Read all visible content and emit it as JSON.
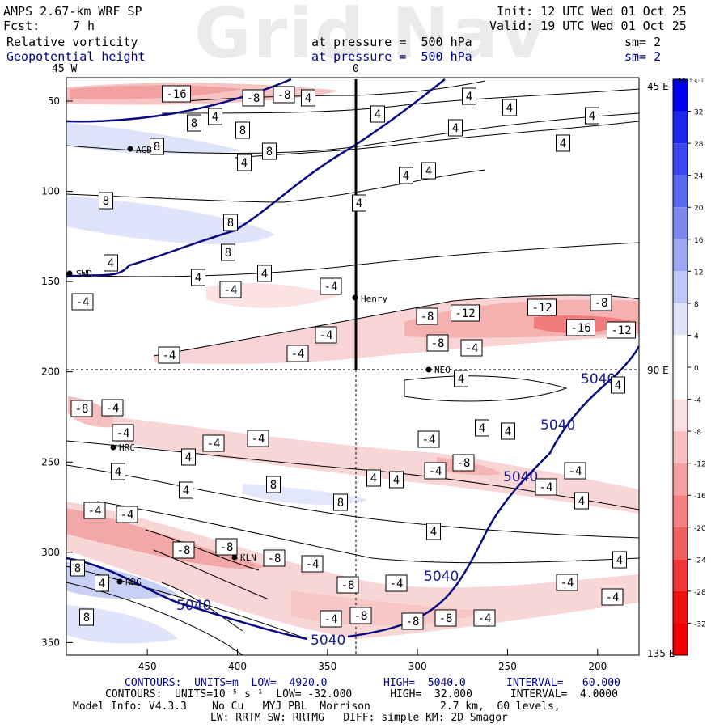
{
  "header": {
    "model": "AMPS 2.67-km WRF SP",
    "fcst_label": "Fcst:",
    "fcst_value": "7 h",
    "init": "Init: 12 UTC Wed 01 Oct 25",
    "valid": "Valid: 19 UTC Wed 01 Oct 25",
    "field1": "Relative vorticity",
    "field2": "Geopotential height",
    "level1": "at pressure =  500 hPa",
    "level2": "at pressure =  500 hPa",
    "sm1": "sm= 2",
    "sm2": "sm= 2",
    "watermark": "Grid Nav",
    "top_left_lon": "45 W",
    "top_mid_lon": "0"
  },
  "colorbar": {
    "units": "10⁻⁵ s⁻¹",
    "levels": [
      "32",
      "28",
      "24",
      "20",
      "16",
      "12",
      "8",
      "4",
      "0",
      "-4",
      "-8",
      "-12",
      "-16",
      "-20",
      "-24",
      "-28",
      "-32"
    ],
    "colors": [
      "#0000f0",
      "#1c28f0",
      "#3a48f0",
      "#5868f0",
      "#7a88f0",
      "#9ca8f4",
      "#bec8f8",
      "#dfe4fb",
      "#ffffff",
      "#ffffff",
      "#fbe0e0",
      "#f8c0c0",
      "#f4a0a0",
      "#f48080",
      "#f06060",
      "#f03838",
      "#f01010",
      "#f00000"
    ]
  },
  "right_labels": {
    "top": "45 E",
    "mid": "90 E",
    "bottom": "135 E"
  },
  "stations": [
    {
      "name": "AGB"
    },
    {
      "name": "SWD"
    },
    {
      "name": "Henry"
    },
    {
      "name": "NEO"
    },
    {
      "name": "HRC"
    },
    {
      "name": "KLN"
    },
    {
      "name": "RDG"
    }
  ],
  "footer": {
    "line1_a": "CONTOURS:  UNITS=m  LOW=  4920.0",
    "line1_b": "HIGH=  5040.0",
    "line1_c": "INTERVAL=   60.000",
    "line2": "CONTOURS:  UNITS=10⁻⁵ s⁻¹  LOW= -32.000      HIGH=  32.000      INTERVAL=  4.0000",
    "line3": "Model Info: V4.3.3    No Cu   MYJ PBL  Morrison           2.7 km,  60 levels,",
    "line4": "LW: RRTM SW: RRTMG   DIFF: simple KM: 2D Smagor"
  },
  "chart_data": {
    "type": "heatmap",
    "title": "Relative vorticity and Geopotential height at 500 hPa",
    "x_ticks": [
      "450",
      "400",
      "350",
      "300",
      "250",
      "200"
    ],
    "y_ticks": [
      "50",
      "100",
      "150",
      "200",
      "250",
      "300",
      "350"
    ],
    "xlim": [
      495,
      177
    ],
    "ylim": [
      37,
      357
    ],
    "height_contour_label": "5040",
    "vorticity_labels": [
      "-16",
      "-12",
      "-8",
      "-4",
      "4",
      "8"
    ],
    "color_levels": [
      -32,
      -28,
      -24,
      -20,
      -16,
      -12,
      -8,
      -4,
      0,
      4,
      8,
      12,
      16,
      20,
      24,
      28,
      32
    ]
  }
}
